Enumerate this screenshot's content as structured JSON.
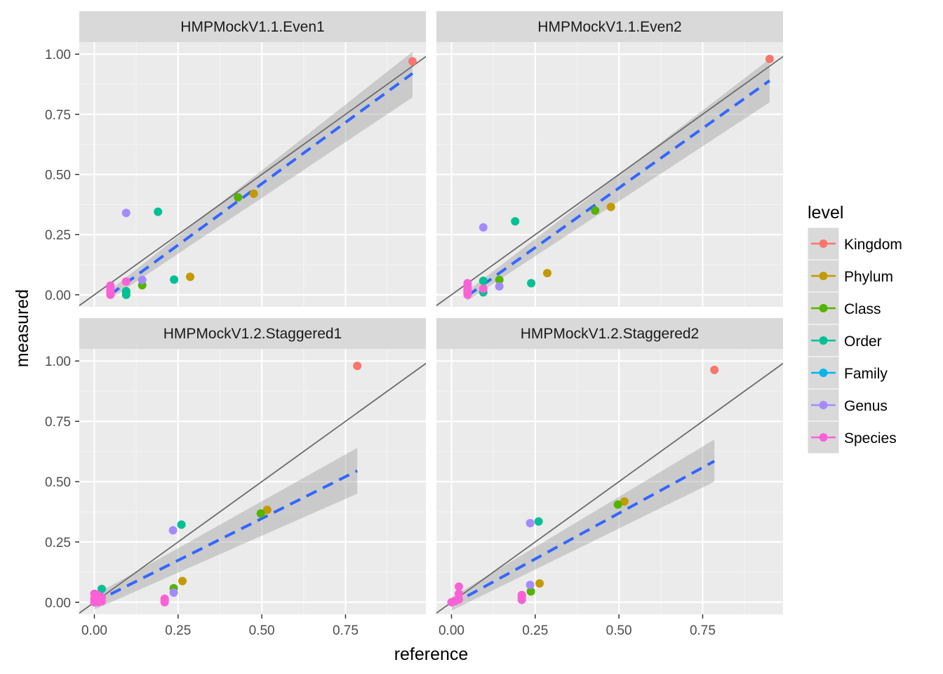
{
  "chart_data": {
    "type": "scatter",
    "xlabel": "reference",
    "ylabel": "measured",
    "legend": {
      "title": "level",
      "position": "right",
      "entries": [
        {
          "name": "Kingdom",
          "color": "#F8766D"
        },
        {
          "name": "Phylum",
          "color": "#C49A00"
        },
        {
          "name": "Class",
          "color": "#53B400"
        },
        {
          "name": "Order",
          "color": "#00C094"
        },
        {
          "name": "Family",
          "color": "#00B6EB"
        },
        {
          "name": "Genus",
          "color": "#A58AFF"
        },
        {
          "name": "Species",
          "color": "#FB61D7"
        }
      ]
    },
    "x_ticks": [
      "0.00",
      "0.25",
      "0.50",
      "0.75"
    ],
    "y_ticks": [
      "0.00",
      "0.25",
      "0.50",
      "0.75",
      "1.00"
    ],
    "x_tick_values": [
      0,
      0.25,
      0.5,
      0.75
    ],
    "y_tick_values": [
      0,
      0.25,
      0.5,
      0.75,
      1.0
    ],
    "xlim": [
      -0.045,
      0.99
    ],
    "ylim": [
      -0.05,
      1.05
    ],
    "grid": true,
    "identity_line": {
      "slope": 1,
      "intercept": 0,
      "color": "#6b6b6b"
    },
    "fit_line": {
      "color": "#3366FF",
      "style": "dashed",
      "confidence_band": true
    },
    "panels": [
      {
        "title": "HMPMockV1.1.Even1",
        "fit": {
          "x0": 0.047,
          "y0": 0.0,
          "x1": 0.95,
          "y1": 0.92,
          "se_lo0": -0.018,
          "se_hi0": 0.02,
          "se_lo1": 0.82,
          "se_hi1": 1.01
        },
        "points": [
          {
            "level": "Kingdom",
            "x": 0.95,
            "y": 0.97
          },
          {
            "level": "Phylum",
            "x": 0.476,
            "y": 0.42
          },
          {
            "level": "Phylum",
            "x": 0.286,
            "y": 0.075
          },
          {
            "level": "Class",
            "x": 0.429,
            "y": 0.405
          },
          {
            "level": "Class",
            "x": 0.143,
            "y": 0.04
          },
          {
            "level": "Class",
            "x": 0.095,
            "y": 0.01
          },
          {
            "level": "Order",
            "x": 0.19,
            "y": 0.345
          },
          {
            "level": "Order",
            "x": 0.238,
            "y": 0.063
          },
          {
            "level": "Order",
            "x": 0.095,
            "y": 0.015
          },
          {
            "level": "Order",
            "x": 0.095,
            "y": 0.0
          },
          {
            "level": "Genus",
            "x": 0.095,
            "y": 0.34
          },
          {
            "level": "Genus",
            "x": 0.143,
            "y": 0.062
          },
          {
            "level": "Species",
            "x": 0.095,
            "y": 0.055
          },
          {
            "level": "Species",
            "x": 0.048,
            "y": 0.038
          },
          {
            "level": "Species",
            "x": 0.048,
            "y": 0.028
          },
          {
            "level": "Species",
            "x": 0.048,
            "y": 0.018
          },
          {
            "level": "Species",
            "x": 0.048,
            "y": 0.01
          },
          {
            "level": "Species",
            "x": 0.048,
            "y": 0.004
          },
          {
            "level": "Species",
            "x": 0.048,
            "y": 0.0
          }
        ]
      },
      {
        "title": "HMPMockV1.1.Even2",
        "fit": {
          "x0": 0.047,
          "y0": -0.005,
          "x1": 0.95,
          "y1": 0.89,
          "se_lo0": -0.025,
          "se_hi0": 0.015,
          "se_lo1": 0.8,
          "se_hi1": 0.98
        },
        "points": [
          {
            "level": "Kingdom",
            "x": 0.95,
            "y": 0.98
          },
          {
            "level": "Phylum",
            "x": 0.476,
            "y": 0.365
          },
          {
            "level": "Phylum",
            "x": 0.286,
            "y": 0.09
          },
          {
            "level": "Class",
            "x": 0.429,
            "y": 0.35
          },
          {
            "level": "Class",
            "x": 0.143,
            "y": 0.062
          },
          {
            "level": "Order",
            "x": 0.19,
            "y": 0.305
          },
          {
            "level": "Order",
            "x": 0.238,
            "y": 0.048
          },
          {
            "level": "Order",
            "x": 0.095,
            "y": 0.058
          },
          {
            "level": "Order",
            "x": 0.095,
            "y": 0.01
          },
          {
            "level": "Genus",
            "x": 0.095,
            "y": 0.28
          },
          {
            "level": "Genus",
            "x": 0.143,
            "y": 0.035
          },
          {
            "level": "Species",
            "x": 0.095,
            "y": 0.025
          },
          {
            "level": "Species",
            "x": 0.048,
            "y": 0.048
          },
          {
            "level": "Species",
            "x": 0.048,
            "y": 0.035
          },
          {
            "level": "Species",
            "x": 0.048,
            "y": 0.022
          },
          {
            "level": "Species",
            "x": 0.048,
            "y": 0.012
          },
          {
            "level": "Species",
            "x": 0.048,
            "y": 0.003
          },
          {
            "level": "Species",
            "x": 0.048,
            "y": 0.0
          }
        ]
      },
      {
        "title": "HMPMockV1.2.Staggered1",
        "fit": {
          "x0": 0.0,
          "y0": 0.0,
          "x1": 0.785,
          "y1": 0.545,
          "se_lo0": -0.03,
          "se_hi0": 0.03,
          "se_lo1": 0.45,
          "se_hi1": 0.64
        },
        "points": [
          {
            "level": "Kingdom",
            "x": 0.785,
            "y": 0.98
          },
          {
            "level": "Phylum",
            "x": 0.516,
            "y": 0.383
          },
          {
            "level": "Phylum",
            "x": 0.263,
            "y": 0.088
          },
          {
            "level": "Class",
            "x": 0.497,
            "y": 0.368
          },
          {
            "level": "Class",
            "x": 0.237,
            "y": 0.058
          },
          {
            "level": "Order",
            "x": 0.26,
            "y": 0.322
          },
          {
            "level": "Order",
            "x": 0.022,
            "y": 0.055
          },
          {
            "level": "Genus",
            "x": 0.235,
            "y": 0.298
          },
          {
            "level": "Genus",
            "x": 0.237,
            "y": 0.04
          },
          {
            "level": "Species",
            "x": 0.21,
            "y": 0.015
          },
          {
            "level": "Species",
            "x": 0.21,
            "y": 0.008
          },
          {
            "level": "Species",
            "x": 0.21,
            "y": 0.0
          },
          {
            "level": "Species",
            "x": 0.0,
            "y": 0.035
          },
          {
            "level": "Species",
            "x": 0.01,
            "y": 0.03
          },
          {
            "level": "Species",
            "x": 0.022,
            "y": 0.02
          },
          {
            "level": "Species",
            "x": 0.0,
            "y": 0.015
          },
          {
            "level": "Species",
            "x": 0.012,
            "y": 0.01
          },
          {
            "level": "Species",
            "x": 0.022,
            "y": 0.005
          },
          {
            "level": "Species",
            "x": 0.0,
            "y": 0.0
          },
          {
            "level": "Species",
            "x": 0.012,
            "y": 0.0
          }
        ]
      },
      {
        "title": "HMPMockV1.2.Staggered2",
        "fit": {
          "x0": 0.0,
          "y0": -0.01,
          "x1": 0.785,
          "y1": 0.585,
          "se_lo0": -0.035,
          "se_hi0": 0.02,
          "se_lo1": 0.5,
          "se_hi1": 0.675
        },
        "points": [
          {
            "level": "Kingdom",
            "x": 0.785,
            "y": 0.963
          },
          {
            "level": "Phylum",
            "x": 0.516,
            "y": 0.418
          },
          {
            "level": "Phylum",
            "x": 0.263,
            "y": 0.078
          },
          {
            "level": "Class",
            "x": 0.497,
            "y": 0.405
          },
          {
            "level": "Class",
            "x": 0.237,
            "y": 0.045
          },
          {
            "level": "Order",
            "x": 0.26,
            "y": 0.335
          },
          {
            "level": "Genus",
            "x": 0.235,
            "y": 0.328
          },
          {
            "level": "Genus",
            "x": 0.235,
            "y": 0.072
          },
          {
            "level": "Species",
            "x": 0.21,
            "y": 0.03
          },
          {
            "level": "Species",
            "x": 0.21,
            "y": 0.02
          },
          {
            "level": "Species",
            "x": 0.21,
            "y": 0.01
          },
          {
            "level": "Species",
            "x": 0.022,
            "y": 0.065
          },
          {
            "level": "Species",
            "x": 0.022,
            "y": 0.035
          },
          {
            "level": "Species",
            "x": 0.022,
            "y": 0.012
          },
          {
            "level": "Species",
            "x": 0.01,
            "y": 0.005
          },
          {
            "level": "Species",
            "x": 0.0,
            "y": 0.0
          }
        ]
      }
    ]
  }
}
